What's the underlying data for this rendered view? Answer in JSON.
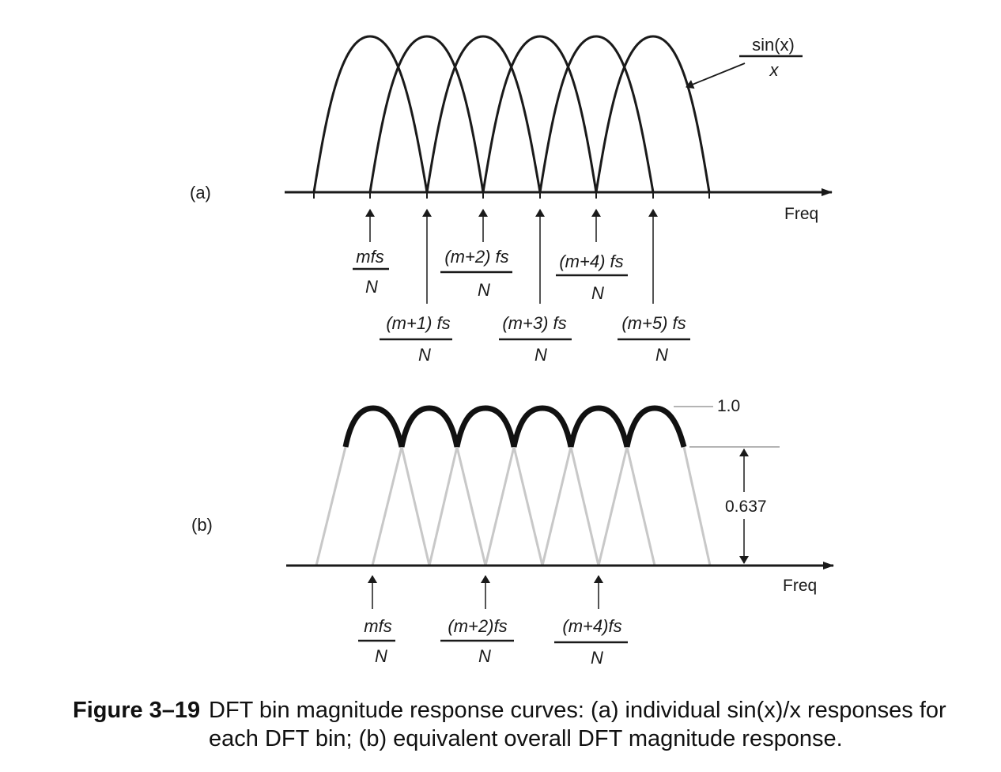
{
  "panel_a": {
    "label": "(a)",
    "axis_label": "Freq",
    "curve_label": {
      "num": "sin(x)",
      "den": "x"
    },
    "bin_labels": [
      {
        "num": "mfs",
        "den": "N",
        "row": 1
      },
      {
        "num": "(m+1) fs",
        "den": "N",
        "row": 2
      },
      {
        "num": "(m+2) fs",
        "den": "N",
        "row": 1
      },
      {
        "num": "(m+3) fs",
        "den": "N",
        "row": 2
      },
      {
        "num": "(m+4) fs",
        "den": "N",
        "row": 1
      },
      {
        "num": "(m+5) fs",
        "den": "N",
        "row": 2
      }
    ]
  },
  "panel_b": {
    "label": "(b)",
    "axis_label": "Freq",
    "peak_label": "1.0",
    "dip_label": "0.637",
    "bin_labels": [
      {
        "num": "mfs",
        "den": "N"
      },
      {
        "num": "(m+2)fs",
        "den": "N"
      },
      {
        "num": "(m+4)fs",
        "den": "N"
      }
    ]
  },
  "caption": {
    "label": "Figure 3–19",
    "text": "DFT bin magnitude response curves: (a) individual sin(x)/x responses for each DFT bin; (b) equivalent overall DFT magnitude response."
  },
  "colors": {
    "ink": "#1a1a1a",
    "faint": "#c8c8c8"
  }
}
